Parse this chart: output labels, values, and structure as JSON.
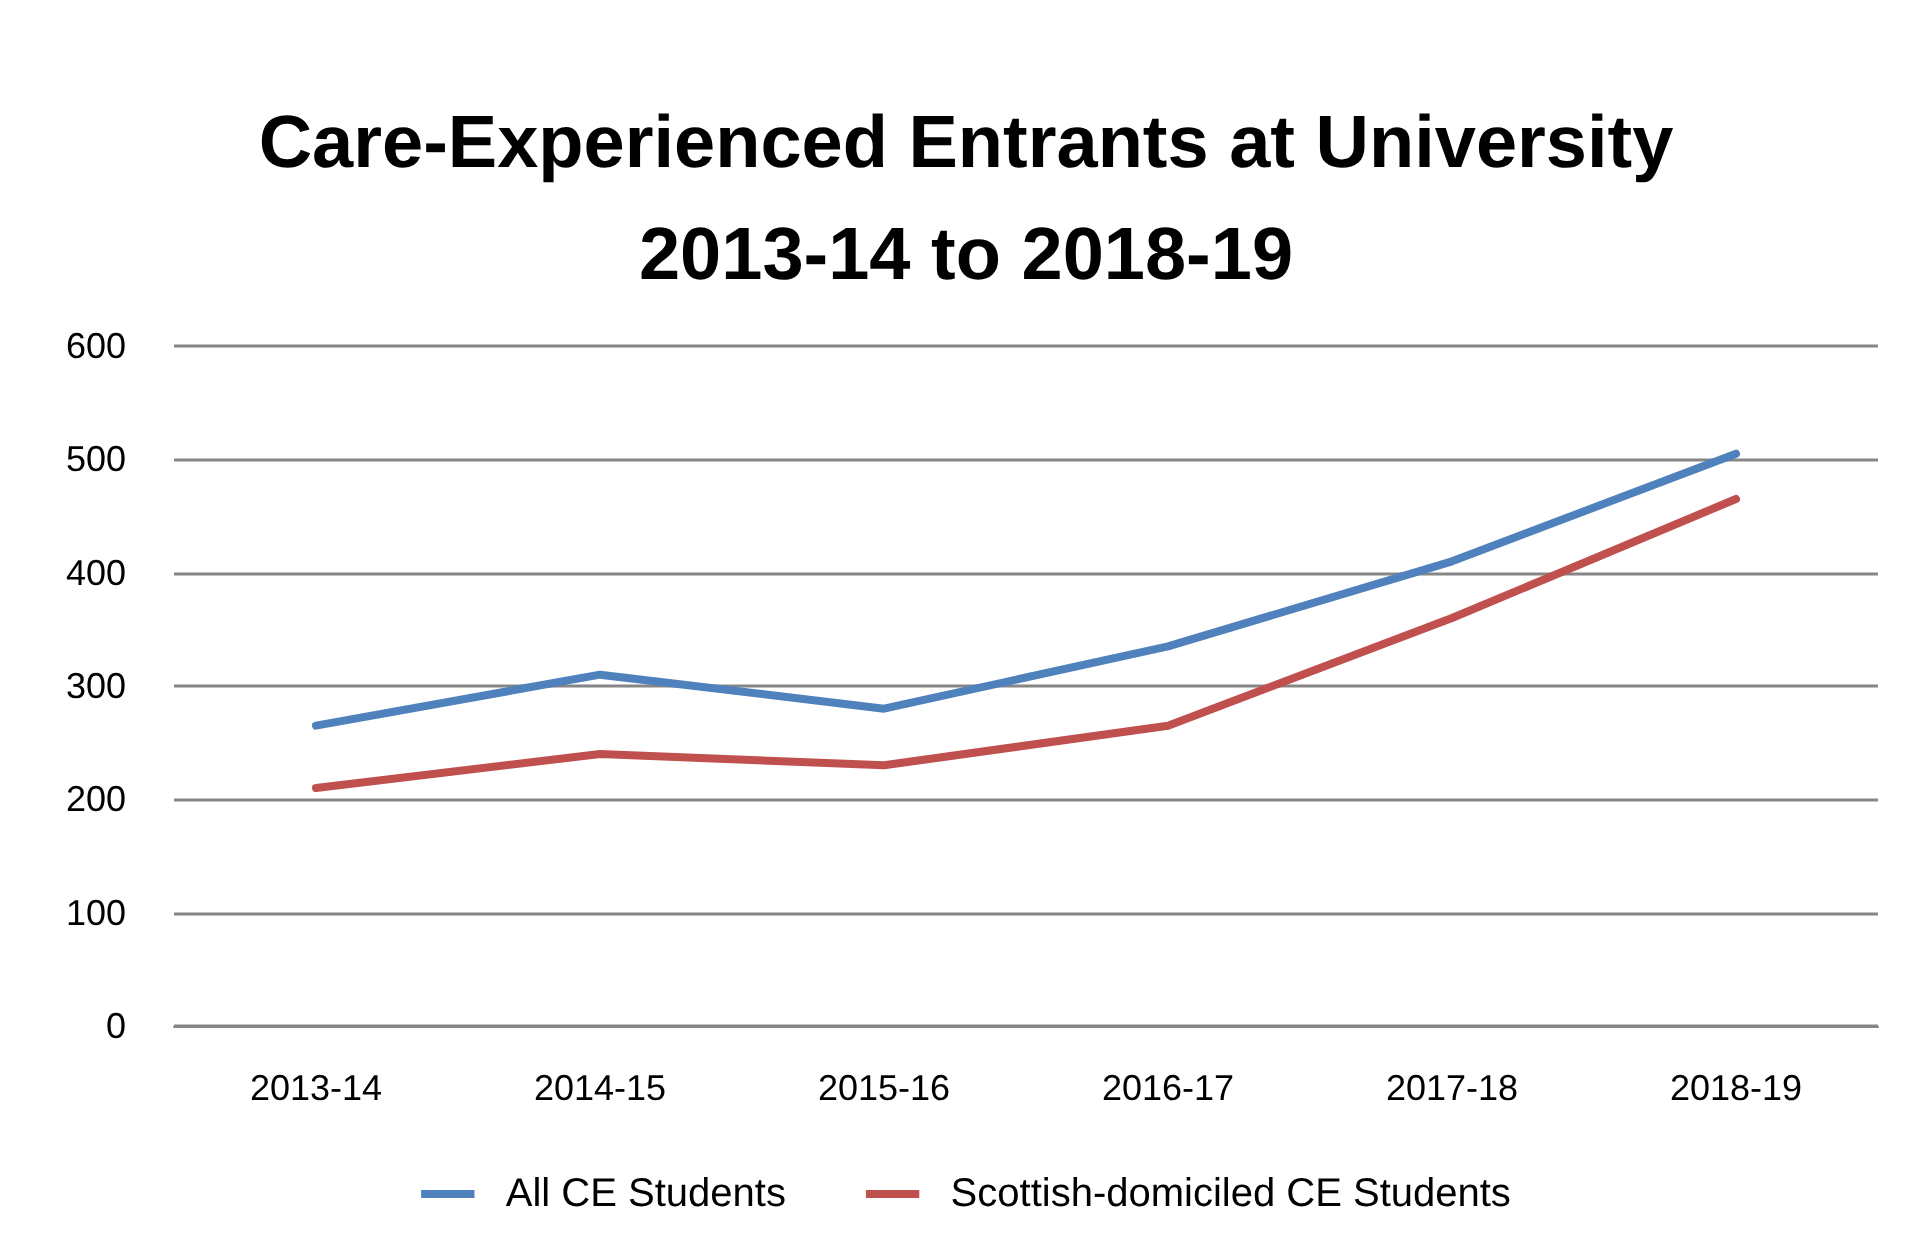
{
  "chart_data": {
    "type": "line",
    "title": "Care-Experienced Entrants at University\n2013-14 to 2018-19",
    "categories": [
      "2013-14",
      "2014-15",
      "2015-16",
      "2016-17",
      "2017-18",
      "2018-19"
    ],
    "series": [
      {
        "name": "All CE Students",
        "color": "#4f81bd",
        "values": [
          265,
          310,
          280,
          335,
          410,
          505
        ]
      },
      {
        "name": "Scottish-domiciled CE Students",
        "color": "#c0504d",
        "values": [
          210,
          240,
          230,
          265,
          360,
          465
        ]
      }
    ],
    "ylim": [
      0,
      600
    ],
    "yticks": [
      0,
      100,
      200,
      300,
      400,
      500,
      600
    ],
    "grid": "y",
    "legend": "bottom",
    "marker": "none",
    "line_style": "solid"
  }
}
